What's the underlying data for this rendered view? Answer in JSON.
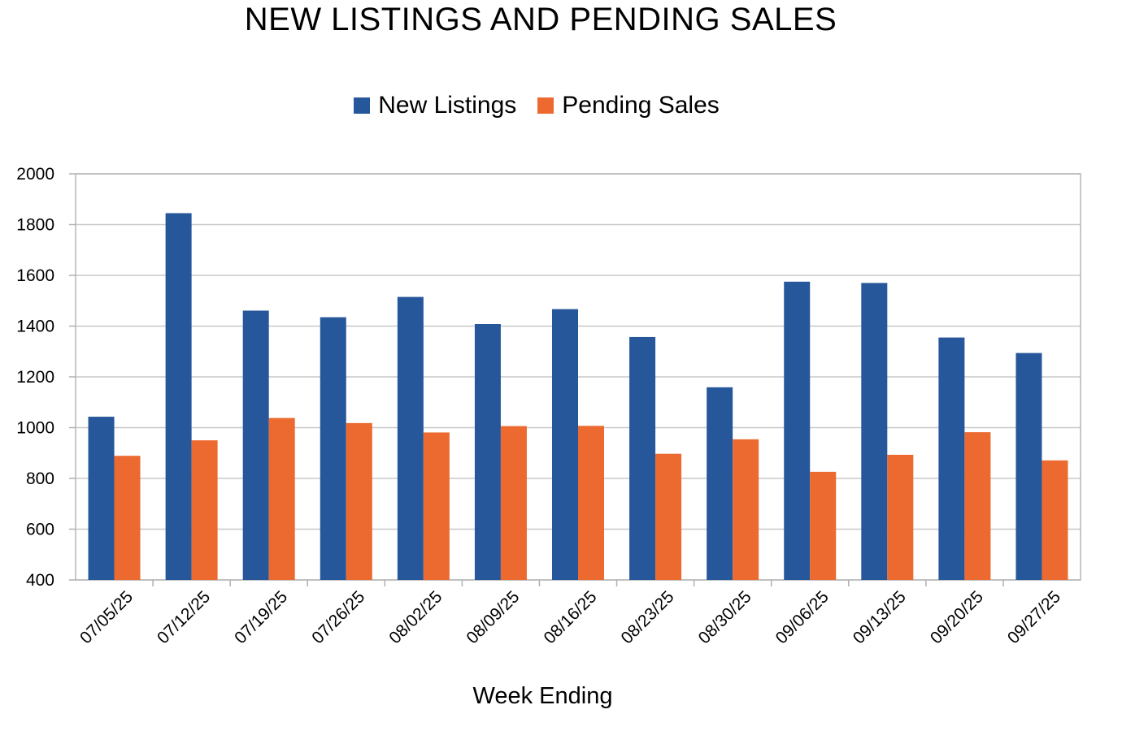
{
  "chart_data": {
    "type": "bar",
    "title": "NEW LISTINGS AND PENDING SALES",
    "xlabel": "Week Ending",
    "ylabel": "",
    "ylim": [
      400,
      2000
    ],
    "yticks": [
      400,
      600,
      800,
      1000,
      1200,
      1400,
      1600,
      1800,
      2000
    ],
    "grid": true,
    "legend_position": "top-center",
    "categories": [
      "07/05/25",
      "07/12/25",
      "07/19/25",
      "07/26/25",
      "08/02/25",
      "08/09/25",
      "08/16/25",
      "08/23/25",
      "08/30/25",
      "09/06/25",
      "09/13/25",
      "09/20/25",
      "09/27/25"
    ],
    "series": [
      {
        "name": "New Listings",
        "color": "#26579a",
        "values": [
          1043,
          1845,
          1461,
          1435,
          1515,
          1408,
          1467,
          1357,
          1159,
          1575,
          1570,
          1355,
          1294
        ]
      },
      {
        "name": "Pending Sales",
        "color": "#ec6a30",
        "values": [
          889,
          950,
          1038,
          1018,
          981,
          1006,
          1007,
          897,
          954,
          826,
          893,
          982,
          871
        ]
      }
    ]
  }
}
